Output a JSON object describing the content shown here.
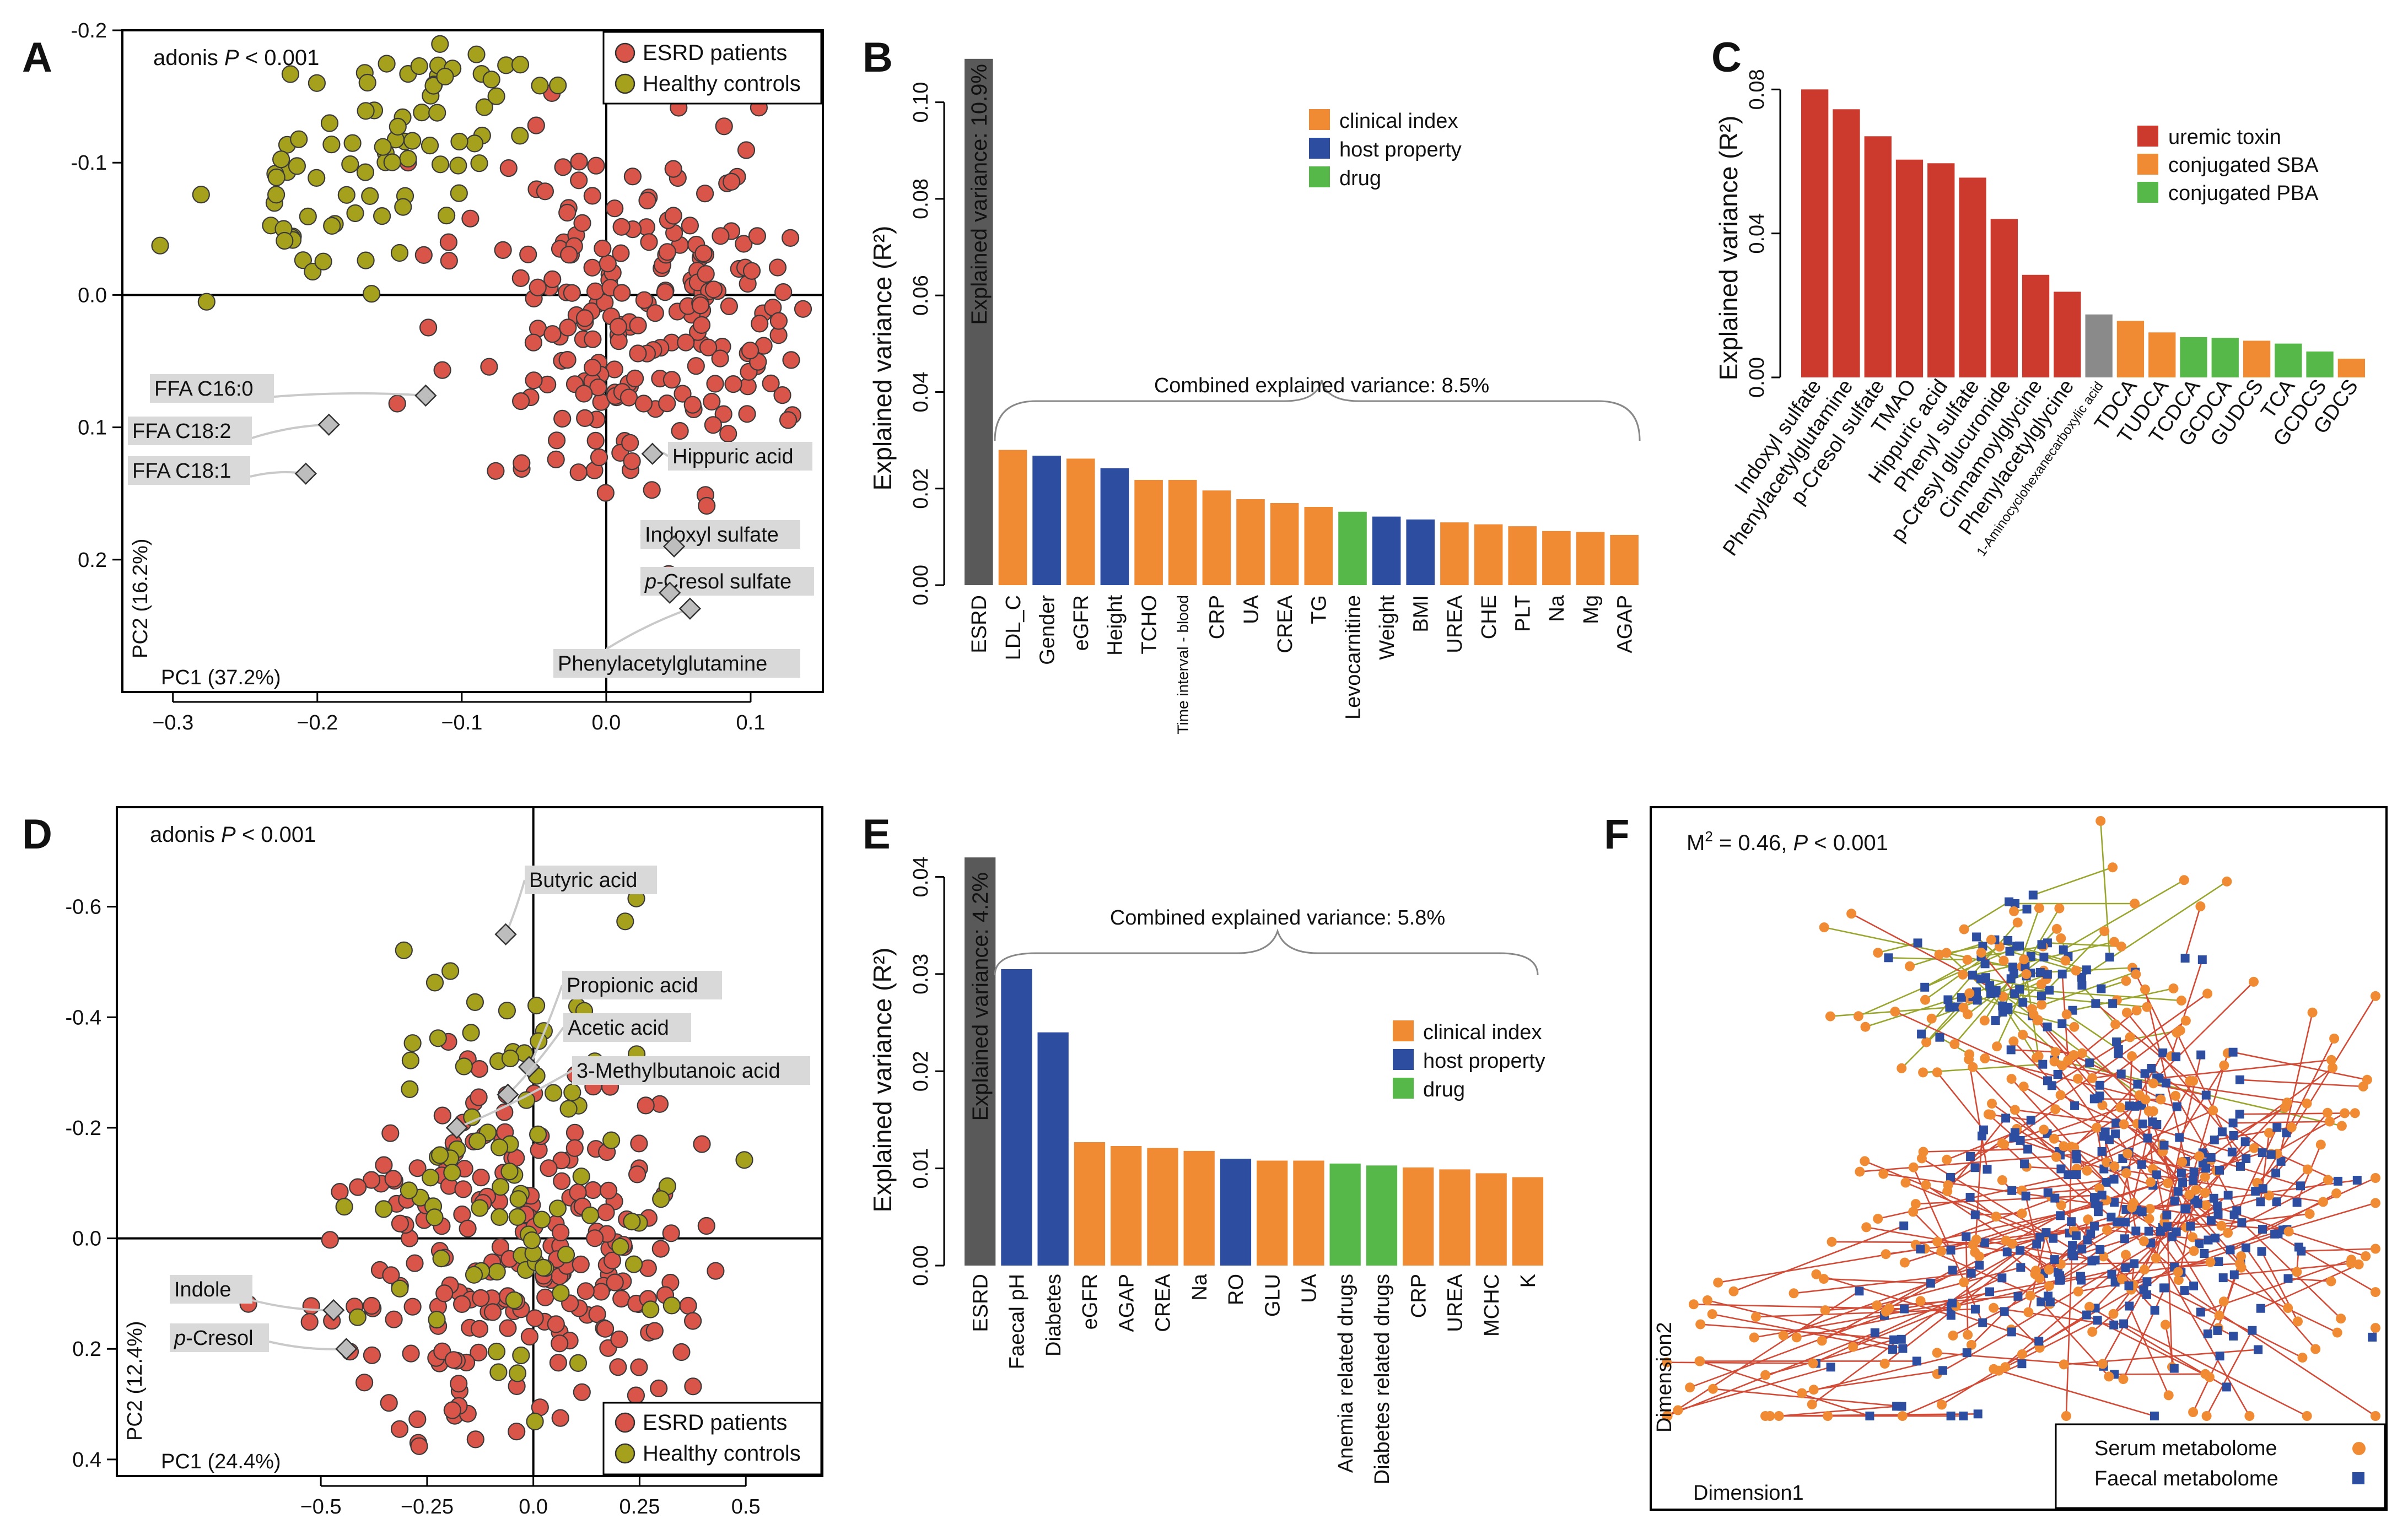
{
  "panels": {
    "A": {
      "letter": "A",
      "annotation": {
        "test": "adonis",
        "p_symbol": "P",
        "p_value": "< 0.001"
      },
      "legend": [
        {
          "label": "ESRD patients",
          "color": "#d9554a"
        },
        {
          "label": "Healthy controls",
          "color": "#a5a11c"
        }
      ],
      "xlabel": "PC1 (37.2%)",
      "ylabel": "PC2 (16.2%)",
      "xticks": [
        {
          "v": -0.3,
          "label": "−0.3"
        },
        {
          "v": -0.2,
          "label": "−0.2"
        },
        {
          "v": -0.1,
          "label": "−0.1"
        },
        {
          "v": 0.0,
          "label": "0.0"
        },
        {
          "v": 0.1,
          "label": "0.1"
        }
      ],
      "yticks": [
        {
          "v": -0.2,
          "label": "-0.2"
        },
        {
          "v": -0.1,
          "label": "-0.1"
        },
        {
          "v": 0.0,
          "label": "0.0"
        },
        {
          "v": 0.1,
          "label": "0.1"
        },
        {
          "v": 0.2,
          "label": "0.2"
        }
      ],
      "xlim": [
        -0.335,
        0.15
      ],
      "ylim": [
        -0.2,
        0.3
      ],
      "metabolites": [
        {
          "label": "FFA C16:0",
          "x": -0.125,
          "y": 0.076
        },
        {
          "label": "FFA C18:2",
          "x": -0.192,
          "y": 0.098
        },
        {
          "label": "FFA C18:1",
          "x": -0.208,
          "y": 0.135
        },
        {
          "label": "Hippuric acid",
          "x": 0.032,
          "y": 0.12
        },
        {
          "label": "Indoxyl sulfate",
          "x": 0.047,
          "y": 0.19
        },
        {
          "label": "p-Cresol sulfate",
          "x": 0.044,
          "y": 0.225,
          "italic_prefix": "p"
        },
        {
          "label": "Phenylacetylglutamine",
          "x": 0.058,
          "y": 0.237
        }
      ]
    },
    "B": {
      "letter": "B",
      "ylabel": "Explained variance (R²)",
      "yticks": [
        {
          "v": 0.0,
          "label": "0.00"
        },
        {
          "v": 0.02,
          "label": "0.02"
        },
        {
          "v": 0.04,
          "label": "0.04"
        },
        {
          "v": 0.06,
          "label": "0.06"
        },
        {
          "v": 0.08,
          "label": "0.08"
        },
        {
          "v": 0.1,
          "label": "0.10"
        }
      ],
      "ylim": [
        0,
        0.11
      ],
      "first_bar_text": "Explained variance: 10.9%",
      "brace_text": "Combined explained variance: 8.5%",
      "legend": [
        {
          "label": "clinical index",
          "color": "#f08a33"
        },
        {
          "label": "host property",
          "color": "#2c4da0"
        },
        {
          "label": "drug",
          "color": "#55b848"
        }
      ]
    },
    "C": {
      "letter": "C",
      "ylabel": "Explained variance (R²)",
      "yticks": [
        {
          "v": 0.0,
          "label": "0.00"
        },
        {
          "v": 0.04,
          "label": "0.04"
        },
        {
          "v": 0.08,
          "label": "0.08"
        }
      ],
      "ylim": [
        0,
        0.09
      ],
      "legend": [
        {
          "label": "uremic toxin",
          "color": "#cb3a2d"
        },
        {
          "label": "conjugated SBA",
          "color": "#f08a33"
        },
        {
          "label": "conjugated PBA",
          "color": "#55b848"
        }
      ]
    },
    "D": {
      "letter": "D",
      "annotation": {
        "test": "adonis",
        "p_symbol": "P",
        "p_value": "< 0.001"
      },
      "legend": [
        {
          "label": "ESRD patients",
          "color": "#d9554a"
        },
        {
          "label": "Healthy controls",
          "color": "#a5a11c"
        }
      ],
      "xlabel": "PC1 (24.4%)",
      "ylabel": "PC2 (12.4%)",
      "xticks": [
        {
          "v": -0.5,
          "label": "−0.5"
        },
        {
          "v": -0.25,
          "label": "−0.25"
        },
        {
          "v": 0.0,
          "label": "0.0"
        },
        {
          "v": 0.25,
          "label": "0.25"
        },
        {
          "v": 0.5,
          "label": "0.5"
        }
      ],
      "yticks": [
        {
          "v": -0.6,
          "label": "-0.6"
        },
        {
          "v": -0.4,
          "label": "-0.4"
        },
        {
          "v": -0.2,
          "label": "-0.2"
        },
        {
          "v": 0.0,
          "label": "0.0"
        },
        {
          "v": 0.2,
          "label": "0.2"
        },
        {
          "v": 0.4,
          "label": "0.4"
        }
      ],
      "xlim": [
        -0.98,
        0.68
      ],
      "ylim": [
        -0.78,
        0.43
      ],
      "metabolites": [
        {
          "label": "Butyric acid",
          "x": -0.065,
          "y": -0.55
        },
        {
          "label": "Propionic acid",
          "x": -0.01,
          "y": -0.31
        },
        {
          "label": "Acetic acid",
          "x": -0.06,
          "y": -0.26
        },
        {
          "label": "3-Methylbutanoic acid",
          "x": -0.18,
          "y": -0.2
        },
        {
          "label": "Indole",
          "x": -0.47,
          "y": 0.13
        },
        {
          "label": "p-Cresol",
          "x": -0.44,
          "y": 0.2,
          "italic_prefix": "p"
        }
      ]
    },
    "E": {
      "letter": "E",
      "ylabel": "Explained variance (R²)",
      "yticks": [
        {
          "v": 0.0,
          "label": "0.00"
        },
        {
          "v": 0.01,
          "label": "0.01"
        },
        {
          "v": 0.02,
          "label": "0.02"
        },
        {
          "v": 0.03,
          "label": "0.03"
        },
        {
          "v": 0.04,
          "label": "0.04"
        }
      ],
      "ylim": [
        0,
        0.0415
      ],
      "first_bar_text": "Explained variance: 4.2%",
      "brace_text": "Combined explained variance: 5.8%",
      "legend": [
        {
          "label": "clinical index",
          "color": "#f08a33"
        },
        {
          "label": "host property",
          "color": "#2c4da0"
        },
        {
          "label": "drug",
          "color": "#55b848"
        }
      ]
    },
    "F": {
      "letter": "F",
      "annotation": {
        "m2": "M",
        "m2_sup": "2",
        "m2_value": " = 0.46, ",
        "p_symbol": "P",
        "p_value": " < 0.001"
      },
      "xlabel": "Dimension1",
      "ylabel": "Dimension2",
      "legend": [
        {
          "label": "Serum metabolome",
          "color": "#f08a33"
        },
        {
          "label": "Faecal metabolome",
          "color": "#2c4da0"
        }
      ]
    }
  },
  "chart_data": [
    {
      "panel": "A",
      "type": "scatter",
      "title": "",
      "xlabel": "PC1 (37.2%)",
      "ylabel": "PC2 (16.2%)",
      "xlim": [
        -0.335,
        0.15
      ],
      "ylim": [
        -0.2,
        0.3
      ],
      "series": [
        {
          "name": "ESRD patients",
          "n_approx": 240,
          "centroid": [
            0.03,
            0.02
          ],
          "spread": [
            0.062,
            0.07
          ],
          "seed": 11
        },
        {
          "name": "Healthy controls",
          "n_approx": 90,
          "centroid": [
            -0.16,
            -0.11
          ],
          "spread": [
            0.055,
            0.035
          ],
          "seed": 23
        }
      ]
    },
    {
      "panel": "B",
      "type": "bar",
      "ylabel": "Explained variance (R²)",
      "ylim": [
        0,
        0.11
      ],
      "categories": [
        "ESRD",
        "LDL_C",
        "Gender",
        "eGFR",
        "Height",
        "TCHO",
        "Time interval - blood",
        "CRP",
        "UA",
        "CREA",
        "TG",
        "Levocarnitine",
        "Weight",
        "BMI",
        "UREA",
        "CHE",
        "PLT",
        "Na",
        "Mg",
        "AGAP"
      ],
      "values": [
        0.109,
        0.028,
        0.0268,
        0.0262,
        0.0242,
        0.0218,
        0.0218,
        0.0196,
        0.0178,
        0.017,
        0.0162,
        0.0152,
        0.0142,
        0.0136,
        0.013,
        0.0126,
        0.0122,
        0.0112,
        0.011,
        0.0104
      ],
      "groups": [
        "overall",
        "clinical index",
        "host property",
        "clinical index",
        "host property",
        "clinical index",
        "clinical index",
        "clinical index",
        "clinical index",
        "clinical index",
        "clinical index",
        "drug",
        "host property",
        "host property",
        "clinical index",
        "clinical index",
        "clinical index",
        "clinical index",
        "clinical index",
        "clinical index"
      ]
    },
    {
      "panel": "C",
      "type": "bar",
      "ylabel": "Explained variance (R²)",
      "ylim": [
        0,
        0.09
      ],
      "categories": [
        "Indoxyl sulfate",
        "Phenylacetylglutamine",
        "p-Cresol sulfate",
        "TMAO",
        "Hippuric acid",
        "Phenyl sulfate",
        "p-Cresyl glucuronide",
        "Cinnamoylglycine",
        "Phenylacetylglycine",
        "1-Aminocyclohexanecarboxylic acid",
        "TDCA",
        "TUDCA",
        "TCDCA",
        "GCDCA",
        "GUDCS",
        "TCA",
        "GCDCS",
        "GDCS"
      ],
      "values": [
        0.08,
        0.0745,
        0.067,
        0.0605,
        0.0595,
        0.0555,
        0.044,
        0.0285,
        0.0238,
        0.0175,
        0.0157,
        0.0125,
        0.0112,
        0.011,
        0.0102,
        0.0094,
        0.0072,
        0.0052
      ],
      "groups": [
        "uremic toxin",
        "uremic toxin",
        "uremic toxin",
        "uremic toxin",
        "uremic toxin",
        "uremic toxin",
        "uremic toxin",
        "uremic toxin",
        "uremic toxin",
        "other",
        "conjugated SBA",
        "conjugated SBA",
        "conjugated PBA",
        "conjugated PBA",
        "conjugated SBA",
        "conjugated PBA",
        "conjugated PBA",
        "conjugated SBA"
      ]
    },
    {
      "panel": "D",
      "type": "scatter",
      "xlabel": "PC1 (24.4%)",
      "ylabel": "PC2 (12.4%)",
      "xlim": [
        -0.98,
        0.68
      ],
      "ylim": [
        -0.78,
        0.43
      ],
      "series": [
        {
          "name": "ESRD patients",
          "n_approx": 230,
          "centroid": [
            -0.05,
            0.05
          ],
          "spread": [
            0.2,
            0.17
          ],
          "seed": 37
        },
        {
          "name": "Healthy controls",
          "n_approx": 95,
          "centroid": [
            0.0,
            -0.13
          ],
          "spread": [
            0.19,
            0.19
          ],
          "seed": 41
        }
      ]
    },
    {
      "panel": "E",
      "type": "bar",
      "ylabel": "Explained variance (R²)",
      "ylim": [
        0,
        0.0415
      ],
      "categories": [
        "ESRD",
        "Faecal pH",
        "Diabetes",
        "eGFR",
        "AGAP",
        "CREA",
        "Na",
        "RO",
        "GLU",
        "UA",
        "Anemia related drugs",
        "Diabetes related drugs",
        "CRP",
        "UREA",
        "MCHC",
        "K"
      ],
      "values": [
        0.042,
        0.0305,
        0.024,
        0.0127,
        0.0123,
        0.0121,
        0.0118,
        0.011,
        0.0108,
        0.0108,
        0.0105,
        0.0103,
        0.0101,
        0.0099,
        0.0095,
        0.0091
      ],
      "groups": [
        "overall",
        "host property",
        "host property",
        "clinical index",
        "clinical index",
        "clinical index",
        "clinical index",
        "host property",
        "clinical index",
        "clinical index",
        "drug",
        "drug",
        "clinical index",
        "clinical index",
        "clinical index",
        "clinical index"
      ]
    },
    {
      "panel": "F",
      "type": "scatter",
      "xlabel": "Dimension1",
      "ylabel": "Dimension2",
      "series": [
        {
          "name": "Serum metabolome",
          "n_approx": 330
        },
        {
          "name": "Faecal metabolome",
          "n_approx": 330
        }
      ],
      "m2": 0.46,
      "p": "< 0.001"
    }
  ]
}
